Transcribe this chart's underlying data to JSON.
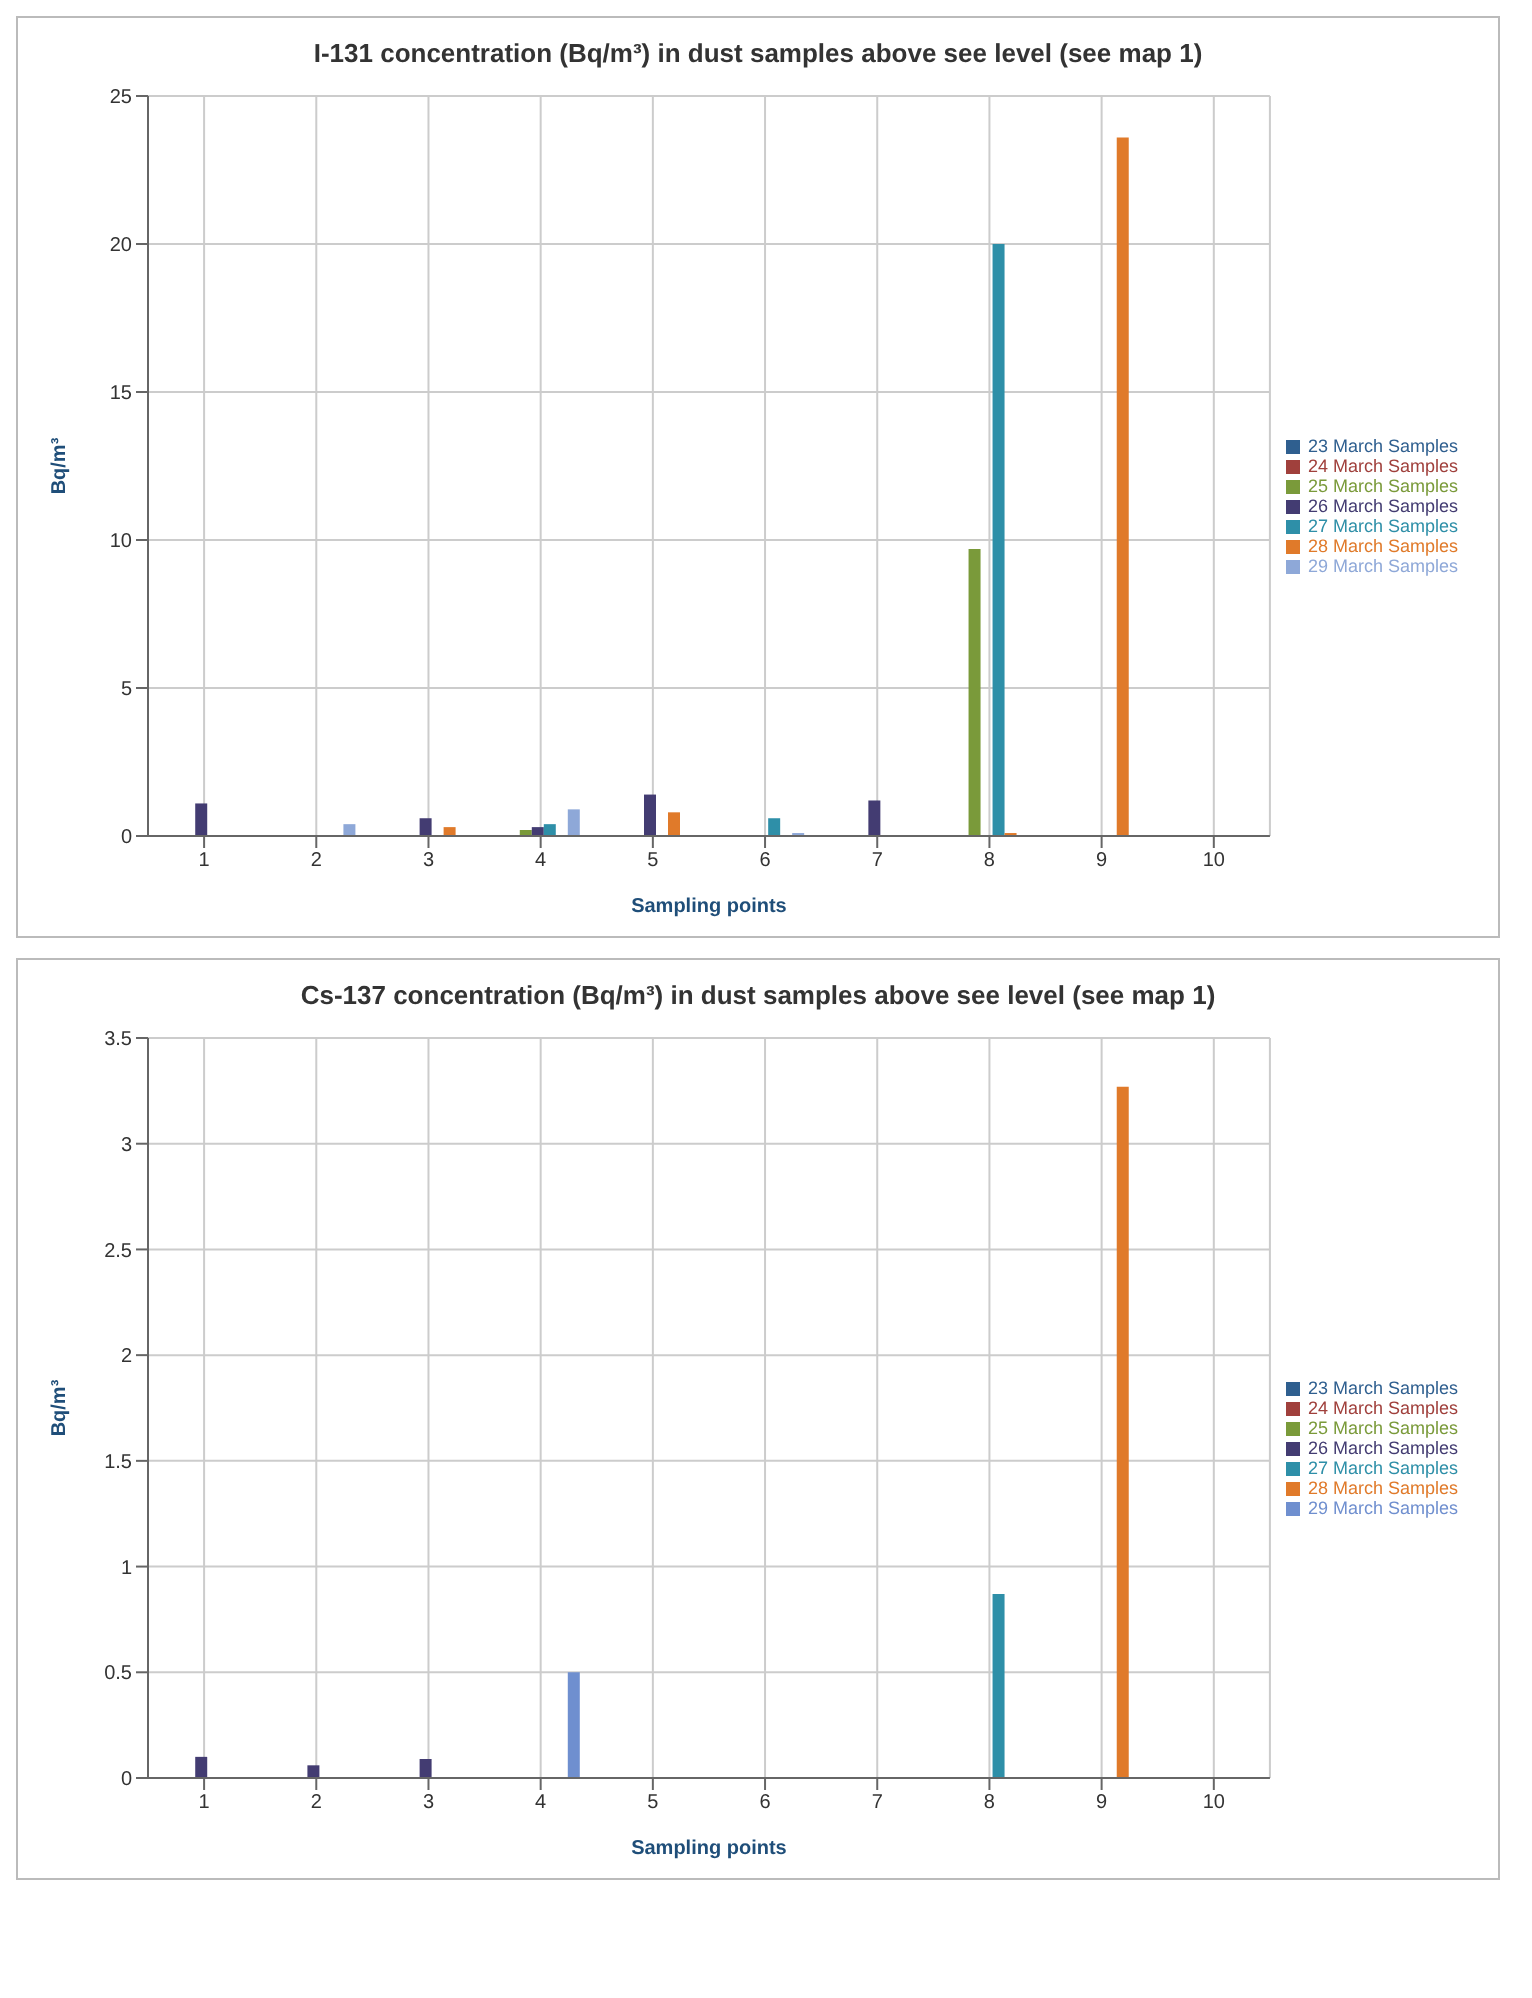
{
  "chart_data": [
    {
      "type": "bar",
      "title": "I-131 concentration (Bq/m³) in dust samples above see level (see map 1)",
      "xlabel": "Sampling points",
      "ylabel": "Bq/m³",
      "categories": [
        "1",
        "2",
        "3",
        "4",
        "5",
        "6",
        "7",
        "8",
        "9",
        "10"
      ],
      "ylim": [
        0,
        25
      ],
      "yticks": [
        0,
        5,
        10,
        15,
        20,
        25
      ],
      "grid": true,
      "legend": "right",
      "series": [
        {
          "name": "23 March Samples",
          "color": "#2f5f8f",
          "values": [
            null,
            null,
            null,
            null,
            null,
            null,
            null,
            null,
            null,
            null
          ]
        },
        {
          "name": "24 March Samples",
          "color": "#a0403c",
          "values": [
            null,
            null,
            null,
            null,
            null,
            null,
            null,
            null,
            null,
            null
          ]
        },
        {
          "name": "25 March Samples",
          "color": "#7a9a3a",
          "values": [
            null,
            null,
            null,
            0.2,
            null,
            null,
            null,
            9.7,
            null,
            null
          ]
        },
        {
          "name": "26 March Samples",
          "color": "#433c72",
          "values": [
            1.1,
            null,
            0.6,
            0.3,
            1.4,
            null,
            1.2,
            null,
            null,
            null
          ]
        },
        {
          "name": "27 March Samples",
          "color": "#2e8fa8",
          "values": [
            null,
            null,
            null,
            0.4,
            null,
            0.6,
            null,
            20,
            null,
            null
          ]
        },
        {
          "name": "28 March Samples",
          "color": "#e07a2a",
          "values": [
            null,
            null,
            0.3,
            null,
            0.8,
            null,
            null,
            0.1,
            23.6,
            null
          ]
        },
        {
          "name": "29 March Samples",
          "color": "#8ea8d8",
          "values": [
            null,
            0.4,
            null,
            0.9,
            null,
            0.1,
            null,
            null,
            null,
            null
          ]
        }
      ]
    },
    {
      "type": "bar",
      "title": "Cs-137 concentration (Bq/m³) in dust samples above see level (see map 1)",
      "xlabel": "Sampling points",
      "ylabel": "Bq/m³",
      "categories": [
        "1",
        "2",
        "3",
        "4",
        "5",
        "6",
        "7",
        "8",
        "9",
        "10"
      ],
      "ylim": [
        0,
        3.5
      ],
      "yticks": [
        0,
        0.5,
        1,
        1.5,
        2,
        2.5,
        3,
        3.5
      ],
      "grid": true,
      "legend": "right",
      "series": [
        {
          "name": "23 March Samples",
          "color": "#2f5f8f",
          "values": [
            null,
            null,
            null,
            null,
            null,
            null,
            null,
            null,
            null,
            null
          ]
        },
        {
          "name": "24 March Samples",
          "color": "#a0403c",
          "values": [
            null,
            null,
            null,
            null,
            null,
            null,
            null,
            null,
            null,
            null
          ]
        },
        {
          "name": "25 March Samples",
          "color": "#7a9a3a",
          "values": [
            null,
            null,
            null,
            null,
            null,
            null,
            null,
            null,
            null,
            null
          ]
        },
        {
          "name": "26 March Samples",
          "color": "#433c72",
          "values": [
            0.1,
            0.06,
            0.09,
            null,
            null,
            null,
            null,
            null,
            null,
            null
          ]
        },
        {
          "name": "27 March Samples",
          "color": "#2e8fa8",
          "values": [
            null,
            null,
            null,
            null,
            null,
            null,
            null,
            0.87,
            null,
            null
          ]
        },
        {
          "name": "28 March Samples",
          "color": "#e07a2a",
          "values": [
            null,
            null,
            null,
            null,
            null,
            null,
            null,
            null,
            3.27,
            null
          ]
        },
        {
          "name": "29 March Samples",
          "color": "#6f8fcf",
          "values": [
            null,
            null,
            null,
            0.5,
            null,
            null,
            null,
            null,
            null,
            null
          ]
        }
      ]
    }
  ]
}
